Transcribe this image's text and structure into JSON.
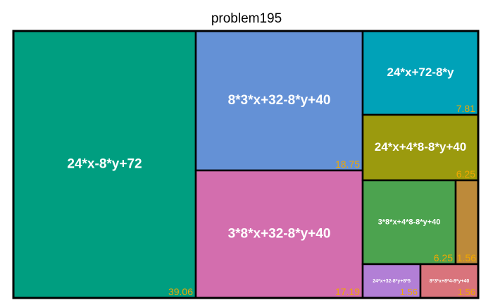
{
  "chart_data": {
    "type": "treemap",
    "title": "problem195",
    "tiles": [
      {
        "label": "24*x-8*y+72",
        "value": "39.06",
        "color": "#009E80"
      },
      {
        "label": "8*3*x+32-8*y+40",
        "value": "18.75",
        "color": "#6491D6"
      },
      {
        "label": "3*8*x+32-8*y+40",
        "value": "17.19",
        "color": "#D36EAE"
      },
      {
        "label": "24*x+72-8*y",
        "value": "7.81",
        "color": "#00A2B8"
      },
      {
        "label": "24*x+4*8-8*y+40",
        "value": "6.25",
        "color": "#9B9A0E"
      },
      {
        "label": "3*8*x+4*8-8*y+40",
        "value": "6.25",
        "color": "#4CA34F"
      },
      {
        "label": "",
        "value": "1.56",
        "color": "#BD8A3A"
      },
      {
        "label": "24*x+32-8*y+8*5",
        "value": "1.56",
        "color": "#B27FD6"
      },
      {
        "label": "8*3*x+8*4-8*y+40",
        "value": "1.56",
        "color": "#D9747C"
      }
    ]
  }
}
